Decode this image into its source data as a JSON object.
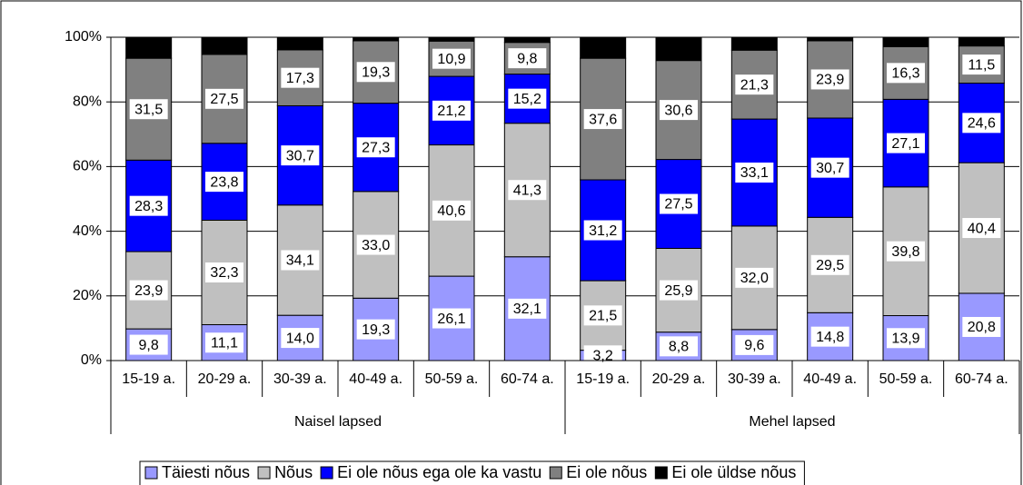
{
  "chart_data": {
    "type": "bar",
    "stacked": true,
    "categories": [
      "15-19 a.",
      "20-29 a.",
      "30-39 a.",
      "40-49 a.",
      "50-59 a.",
      "60-74 a.",
      "15-19 a.",
      "20-29 a.",
      "30-39 a.",
      "40-49 a.",
      "50-59 a.",
      "60-74 a."
    ],
    "groups": [
      "Naisel lapsed",
      "Mehel lapsed"
    ],
    "ylim": [
      0,
      100
    ],
    "yticks": [
      {
        "value": 0,
        "label": "0%"
      },
      {
        "value": 20,
        "label": "20%"
      },
      {
        "value": 40,
        "label": "40%"
      },
      {
        "value": 60,
        "label": "60%"
      },
      {
        "value": 80,
        "label": "80%"
      },
      {
        "value": 100,
        "label": "100%"
      }
    ],
    "grid": true,
    "legend": "bottom",
    "series": [
      {
        "name": "Täiesti nõus",
        "color": "#9999ff",
        "values": [
          9.8,
          11.1,
          14.0,
          19.3,
          26.1,
          32.1,
          3.2,
          8.8,
          9.6,
          14.8,
          13.9,
          20.8
        ],
        "value_labels": [
          "9,8",
          "11,1",
          "14,0",
          "19,3",
          "26,1",
          "32,1",
          "3,2",
          "8,8",
          "9,6",
          "14,8",
          "13,9",
          "20,8"
        ]
      },
      {
        "name": "Nõus",
        "color": "#c0c0c0",
        "values": [
          23.9,
          32.3,
          34.1,
          33.0,
          40.6,
          41.3,
          21.5,
          25.9,
          32.0,
          29.5,
          39.8,
          40.4
        ],
        "value_labels": [
          "23,9",
          "32,3",
          "34,1",
          "33,0",
          "40,6",
          "41,3",
          "21,5",
          "25,9",
          "32,0",
          "29,5",
          "39,8",
          "40,4"
        ]
      },
      {
        "name": "Ei ole nõus ega ole ka vastu",
        "color": "#0000ff",
        "values": [
          28.3,
          23.8,
          30.7,
          27.3,
          21.2,
          15.2,
          31.2,
          27.5,
          33.1,
          30.7,
          27.1,
          24.6
        ],
        "value_labels": [
          "28,3",
          "23,8",
          "30,7",
          "27,3",
          "21,2",
          "15,2",
          "31,2",
          "27,5",
          "33,1",
          "30,7",
          "27,1",
          "24,6"
        ]
      },
      {
        "name": "Ei ole nõus",
        "color": "#808080",
        "values": [
          31.5,
          27.5,
          17.3,
          19.3,
          10.9,
          9.8,
          37.6,
          30.6,
          21.3,
          23.9,
          16.3,
          11.5
        ],
        "value_labels": [
          "31,5",
          "27,5",
          "17,3",
          "19,3",
          "10,9",
          "9,8",
          "37,6",
          "30,6",
          "21,3",
          "23,9",
          "16,3",
          "11,5"
        ]
      },
      {
        "name": "Ei ole üldse nõus",
        "color": "#000000",
        "values": [
          6.5,
          5.3,
          3.9,
          1.1,
          1.2,
          1.6,
          6.5,
          7.2,
          4.0,
          1.1,
          2.9,
          2.7
        ]
      }
    ]
  }
}
